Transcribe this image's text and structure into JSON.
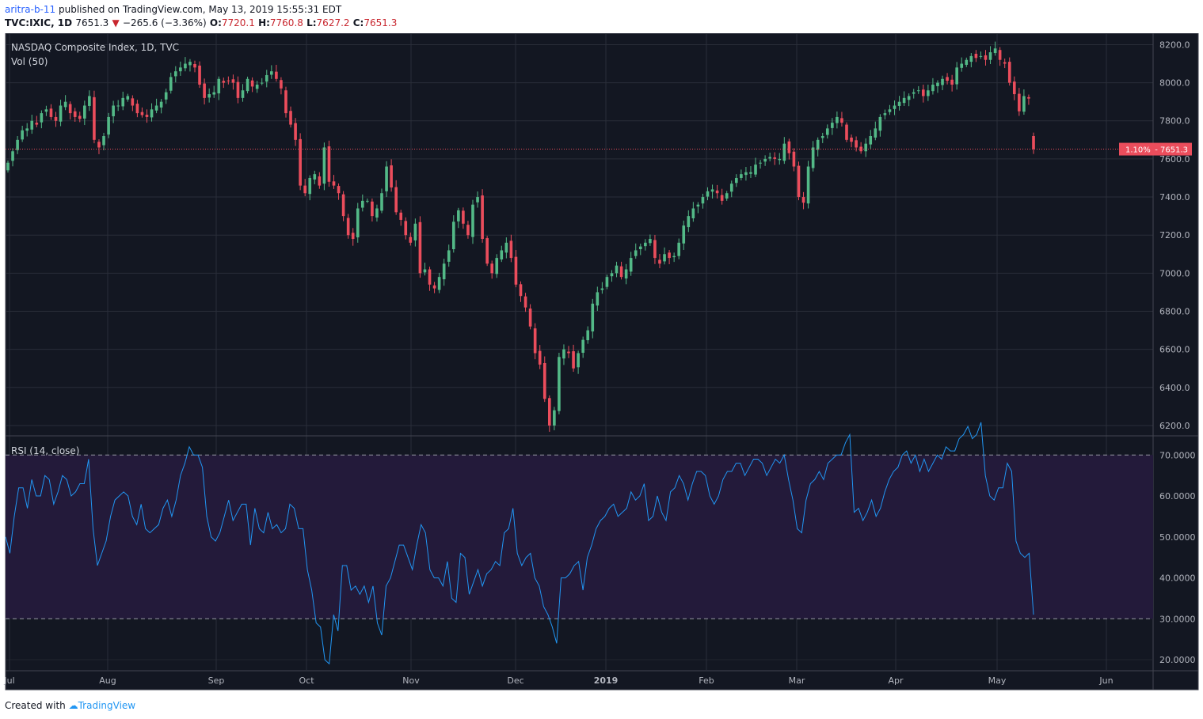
{
  "header": {
    "author": "aritra-b-11",
    "published": "published on TradingView.com, May 13, 2019 15:55:31 EDT",
    "symbol": "TVC:IXIC, 1D",
    "last": "7651.3",
    "arrow": "▼",
    "change": "−265.6 (−3.36%)",
    "o_label": "O:",
    "o_val": "7720.1",
    "h_label": "H:",
    "h_val": "7760.8",
    "l_label": "L:",
    "l_val": "7627.2",
    "c_label": "C:",
    "c_val": "7651.3"
  },
  "footer": {
    "created": "Created with",
    "brand": "TradingView"
  },
  "colors": {
    "background": "#131722",
    "up": "#53b987",
    "down": "#eb4d5c",
    "rsi_line": "#2196f3",
    "rsi_band": "#231a3a",
    "grid": "#2a2e39",
    "axis_text": "#b2b5be",
    "price_label_bg": "#eb4d5c"
  },
  "chart_data": [
    {
      "type": "candlestick",
      "title": "NASDAQ Composite Index, 1D, TVC",
      "subtitle": "Vol (50)",
      "yticks": [
        "8200.0",
        "8000.0",
        "7800.0",
        "7600.0",
        "7400.0",
        "7200.0",
        "7000.0",
        "6800.0",
        "6600.0",
        "6400.0",
        "6200.0"
      ],
      "ylim": [
        6150,
        8260
      ],
      "xticks": [
        "Jul",
        "Aug",
        "Sep",
        "Oct",
        "Nov",
        "Dec",
        "2019",
        "Feb",
        "Mar",
        "Apr",
        "May",
        "Jun"
      ],
      "last_price_label": "7651.3",
      "last_pct_label": "1.10%",
      "last_price": 7651.3,
      "closes": [
        7580,
        7640,
        7700,
        7750,
        7760,
        7800,
        7780,
        7840,
        7860,
        7820,
        7800,
        7880,
        7900,
        7840,
        7820,
        7810,
        7880,
        7930,
        7700,
        7660,
        7720,
        7820,
        7880,
        7880,
        7920,
        7930,
        7880,
        7840,
        7830,
        7820,
        7860,
        7880,
        7900,
        7950,
        8030,
        8060,
        8080,
        8100,
        8110,
        8080,
        7990,
        7920,
        7940,
        7950,
        8020,
        8000,
        8010,
        8000,
        7920,
        7960,
        8020,
        7980,
        7990,
        8000,
        8040,
        8060,
        8020,
        7970,
        7840,
        7780,
        7700,
        7460,
        7420,
        7500,
        7520,
        7460,
        7660,
        7480,
        7460,
        7420,
        7300,
        7200,
        7180,
        7340,
        7380,
        7380,
        7300,
        7340,
        7420,
        7560,
        7450,
        7320,
        7280,
        7200,
        7160,
        7260,
        7000,
        7020,
        6940,
        6920,
        6980,
        7050,
        7120,
        7270,
        7330,
        7260,
        7200,
        7360,
        7400,
        7180,
        7050,
        7000,
        7080,
        7120,
        7160,
        7080,
        6940,
        6880,
        6820,
        6720,
        6580,
        6520,
        6340,
        6200,
        6280,
        6560,
        6600,
        6580,
        6500,
        6580,
        6650,
        6700,
        6840,
        6900,
        6920,
        6980,
        7000,
        7040,
        6980,
        7020,
        7080,
        7120,
        7140,
        7160,
        7180,
        7080,
        7050,
        7100,
        7080,
        7090,
        7160,
        7250,
        7300,
        7340,
        7360,
        7400,
        7430,
        7440,
        7420,
        7380,
        7420,
        7470,
        7500,
        7520,
        7530,
        7530,
        7570,
        7580,
        7600,
        7610,
        7600,
        7600,
        7680,
        7630,
        7560,
        7400,
        7370,
        7560,
        7660,
        7700,
        7720,
        7760,
        7790,
        7820,
        7790,
        7700,
        7690,
        7660,
        7640,
        7680,
        7720,
        7760,
        7820,
        7840,
        7860,
        7880,
        7900,
        7920,
        7930,
        7950,
        7960,
        7930,
        7960,
        7990,
        8000,
        8020,
        8010,
        7990,
        8080,
        8100,
        8120,
        8140,
        8130,
        8140,
        8120,
        8160,
        8180,
        8120,
        8100,
        8000,
        7940,
        7850,
        7930,
        7916.9,
        7651.3
      ]
    },
    {
      "type": "line",
      "title": "RSI (14, close)",
      "yticks": [
        "70.0000",
        "60.0000",
        "50.0000",
        "40.0000",
        "30.0000",
        "20.0000"
      ],
      "ylim": [
        17.5,
        74.5
      ],
      "bands": [
        30,
        70
      ],
      "values": [
        50,
        46,
        55,
        62,
        62,
        57,
        64,
        60,
        60,
        65,
        64,
        58,
        61,
        65,
        64,
        60,
        61,
        63,
        63,
        69,
        52,
        43,
        46,
        49,
        55,
        59,
        60,
        61,
        60,
        55,
        53,
        58,
        52,
        51,
        52,
        53,
        57,
        59,
        55,
        59,
        65,
        68,
        72,
        70,
        70,
        67,
        55,
        50,
        49,
        51,
        55,
        59,
        54,
        56,
        58,
        58,
        48,
        57,
        52,
        51,
        56,
        52,
        53,
        51,
        52,
        58,
        57,
        52,
        52,
        42,
        37,
        29,
        28,
        20,
        19,
        31,
        27,
        43,
        43,
        37,
        38,
        36,
        38,
        34,
        38,
        29,
        26,
        38,
        40,
        44,
        48,
        48,
        45,
        42,
        48,
        53,
        51,
        42,
        40,
        40,
        38,
        44,
        35,
        34,
        46,
        45,
        36,
        39,
        42,
        38,
        41,
        42,
        44,
        43,
        51,
        52,
        57,
        46,
        43,
        45,
        46,
        40,
        38,
        33,
        31,
        28,
        24,
        40,
        40,
        41,
        43,
        44,
        37,
        45,
        48,
        52,
        54,
        55,
        57,
        58,
        55,
        56,
        57,
        61,
        59,
        60,
        63,
        54,
        55,
        60,
        56,
        54,
        61,
        62,
        65,
        63,
        59,
        63,
        66,
        66,
        65,
        60,
        58,
        60,
        64,
        66,
        66,
        68,
        68,
        65,
        67,
        69,
        69,
        68,
        65,
        67,
        69,
        68,
        70,
        64,
        59,
        52,
        51,
        59,
        63,
        64,
        66,
        64,
        68,
        69,
        70,
        70,
        73,
        75,
        56,
        57,
        54,
        56,
        59,
        55,
        57,
        61,
        64,
        66,
        67,
        70,
        71,
        68,
        70,
        66,
        69,
        66,
        68,
        70,
        69,
        72,
        71,
        71,
        74,
        75,
        77,
        74,
        75,
        78,
        65,
        60,
        59,
        62,
        62,
        68,
        66,
        49,
        46,
        45,
        46,
        31
      ]
    }
  ]
}
